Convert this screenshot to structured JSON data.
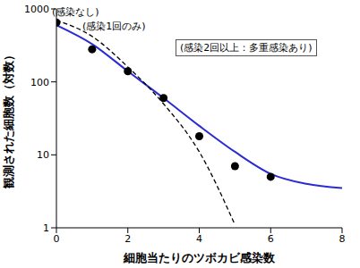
{
  "chart_data": {
    "type": "line",
    "x_label": "細胞当たりのツボカビ感染数",
    "y_label": "観測された細胞数（対数）",
    "annotations": [
      "(感染なし)",
      "(感染1回のみ)",
      "(感染2回以上：多重感染あり)"
    ],
    "x": [
      0,
      1,
      2,
      3,
      4,
      5,
      6,
      7,
      8
    ],
    "series": [
      {
        "type": "scatter",
        "color": "#000000",
        "marker": "circle",
        "values": [
          650,
          280,
          140,
          60,
          18,
          7,
          5,
          null,
          null
        ]
      },
      {
        "type": "line",
        "color": "#2b2bd6",
        "line_style": "solid",
        "values": [
          600,
          330,
          140,
          60,
          25,
          11,
          5.5,
          4,
          3.5
        ]
      },
      {
        "type": "line",
        "color": "#000000",
        "line_style": "dashed",
        "values": [
          700,
          420,
          160,
          50,
          11,
          1.1,
          null,
          null,
          null
        ]
      }
    ],
    "xlim": [
      0,
      8
    ],
    "xticks": [
      0,
      2,
      4,
      6,
      8
    ],
    "ylim": [
      1,
      1000
    ],
    "yticks": [
      1,
      10,
      100,
      1000
    ],
    "log": "y",
    "grid": false
  }
}
